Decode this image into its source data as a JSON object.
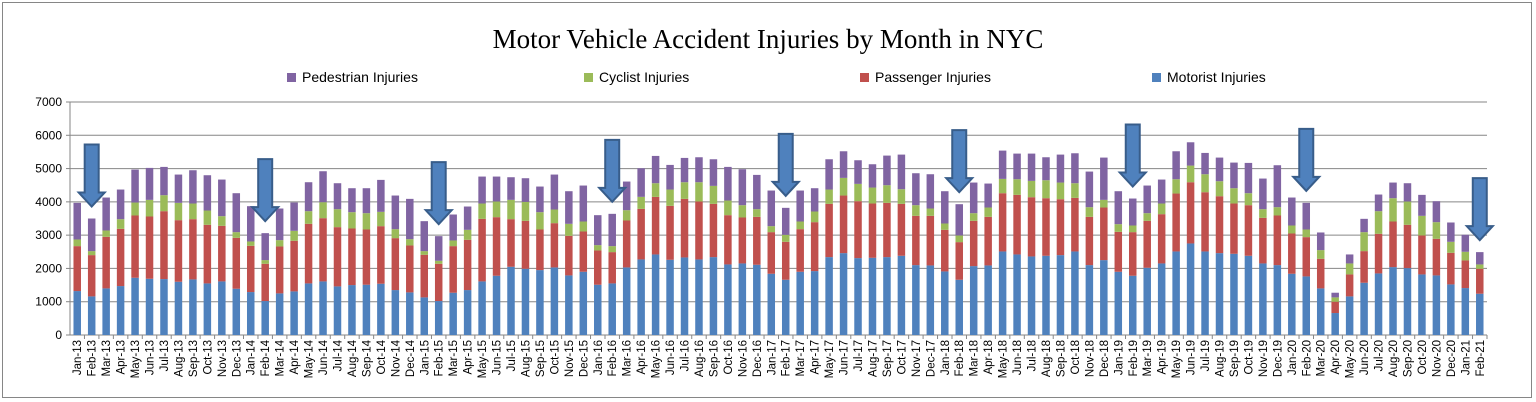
{
  "chart_data": {
    "type": "bar",
    "stacked": true,
    "title": "Motor Vehicle Accident Injuries by Month in NYC",
    "xlabel": "",
    "ylabel": "",
    "ylim": [
      0,
      7000
    ],
    "yticks": [
      0,
      1000,
      2000,
      3000,
      4000,
      5000,
      6000,
      7000
    ],
    "grid": true,
    "legend_position": "top",
    "legend_order": [
      "Pedestrian Injuries",
      "Cyclist Injuries",
      "Passenger Injuries",
      "Motorist Injuries"
    ],
    "categories": [
      "Jan-13",
      "Feb-13",
      "Mar-13",
      "Apr-13",
      "May-13",
      "Jun-13",
      "Jul-13",
      "Aug-13",
      "Sep-13",
      "Oct-13",
      "Nov-13",
      "Dec-13",
      "Jan-14",
      "Feb-14",
      "Mar-14",
      "Apr-14",
      "May-14",
      "Jun-14",
      "Jul-14",
      "Aug-14",
      "Sep-14",
      "Oct-14",
      "Nov-14",
      "Dec-14",
      "Jan-15",
      "Feb-15",
      "Mar-15",
      "Apr-15",
      "May-15",
      "Jun-15",
      "Jul-15",
      "Aug-15",
      "Sep-15",
      "Oct-15",
      "Nov-15",
      "Dec-15",
      "Jan-16",
      "Feb-16",
      "Mar-16",
      "Apr-16",
      "May-16",
      "Jun-16",
      "Jul-16",
      "Aug-16",
      "Sep-16",
      "Oct-16",
      "Nov-16",
      "Dec-16",
      "Jan-17",
      "Feb-17",
      "Mar-17",
      "Apr-17",
      "May-17",
      "Jun-17",
      "Jul-17",
      "Aug-17",
      "Sep-17",
      "Oct-17",
      "Nov-17",
      "Dec-17",
      "Jan-18",
      "Feb-18",
      "Mar-18",
      "Apr-18",
      "May-18",
      "Jun-18",
      "Jul-18",
      "Aug-18",
      "Sep-18",
      "Oct-18",
      "Nov-18",
      "Dec-18",
      "Jan-19",
      "Feb-19",
      "Mar-19",
      "Apr-19",
      "May-19",
      "Jun-19",
      "Jul-19",
      "Aug-19",
      "Sep-19",
      "Oct-19",
      "Nov-19",
      "Dec-19",
      "Jan-20",
      "Feb-20",
      "Mar-20",
      "Apr-20",
      "May-20",
      "Jun-20",
      "Jul-20",
      "Aug-20",
      "Sep-20",
      "Oct-20",
      "Nov-20",
      "Dec-20",
      "Jan-21",
      "Feb-21"
    ],
    "series": [
      {
        "name": "Motorist Injuries",
        "color": "#4F81BD",
        "values": [
          1320,
          1160,
          1400,
          1470,
          1720,
          1690,
          1680,
          1600,
          1670,
          1550,
          1610,
          1390,
          1290,
          1020,
          1250,
          1310,
          1550,
          1610,
          1460,
          1500,
          1510,
          1540,
          1350,
          1280,
          1130,
          1020,
          1270,
          1350,
          1610,
          1780,
          2050,
          1990,
          1950,
          2030,
          1790,
          1900,
          1510,
          1550,
          2030,
          2270,
          2420,
          2260,
          2330,
          2270,
          2340,
          2120,
          2150,
          2110,
          1840,
          1660,
          1900,
          1920,
          2340,
          2460,
          2310,
          2320,
          2340,
          2380,
          2100,
          2090,
          1910,
          1660,
          2070,
          2090,
          2510,
          2420,
          2360,
          2380,
          2400,
          2510,
          2100,
          2250,
          1900,
          1780,
          2020,
          2150,
          2510,
          2750,
          2510,
          2460,
          2440,
          2380,
          2150,
          2100,
          1840,
          1760,
          1400,
          660,
          1160,
          1570,
          1850,
          2040,
          2010,
          1820,
          1790,
          1520,
          1410,
          1240
        ]
      },
      {
        "name": "Passenger Injuries",
        "color": "#C0504D",
        "values": [
          1350,
          1240,
          1550,
          1720,
          1870,
          1870,
          2040,
          1850,
          1810,
          1760,
          1670,
          1530,
          1390,
          1120,
          1410,
          1520,
          1790,
          1900,
          1780,
          1700,
          1660,
          1730,
          1560,
          1410,
          1280,
          1120,
          1400,
          1510,
          1880,
          1760,
          1430,
          1440,
          1220,
          1330,
          1190,
          1210,
          1030,
          940,
          1410,
          1520,
          1730,
          1620,
          1760,
          1740,
          1600,
          1480,
          1380,
          1440,
          1250,
          1140,
          1280,
          1470,
          1600,
          1730,
          1710,
          1630,
          1630,
          1560,
          1480,
          1490,
          1250,
          1130,
          1360,
          1460,
          1750,
          1790,
          1780,
          1730,
          1680,
          1610,
          1450,
          1580,
          1200,
          1310,
          1410,
          1480,
          1740,
          1840,
          1780,
          1710,
          1510,
          1520,
          1370,
          1490,
          1210,
          1180,
          890,
          340,
          660,
          950,
          1190,
          1370,
          1300,
          1170,
          1100,
          950,
          830,
          750
        ]
      },
      {
        "name": "Cyclist Injuries",
        "color": "#9BBB59",
        "values": [
          200,
          120,
          190,
          290,
          390,
          500,
          480,
          520,
          470,
          430,
          290,
          170,
          130,
          110,
          190,
          300,
          380,
          480,
          540,
          490,
          490,
          430,
          270,
          190,
          110,
          90,
          170,
          300,
          460,
          470,
          580,
          570,
          520,
          410,
          360,
          300,
          160,
          180,
          310,
          360,
          410,
          490,
          500,
          580,
          540,
          440,
          370,
          230,
          180,
          210,
          230,
          320,
          430,
          530,
          520,
          480,
          530,
          440,
          320,
          220,
          190,
          200,
          230,
          280,
          430,
          470,
          490,
          540,
          500,
          440,
          290,
          230,
          230,
          200,
          230,
          320,
          430,
          500,
          540,
          450,
          460,
          360,
          260,
          250,
          240,
          230,
          260,
          130,
          330,
          570,
          680,
          700,
          700,
          590,
          500,
          330,
          260,
          130
        ]
      },
      {
        "name": "Pedestrian Injuries",
        "color": "#8064A2",
        "values": [
          1100,
          980,
          990,
          890,
          990,
          960,
          850,
          850,
          1000,
          1060,
          1100,
          1170,
          1060,
          810,
          950,
          850,
          870,
          930,
          780,
          720,
          750,
          960,
          1010,
          1210,
          900,
          740,
          780,
          700,
          810,
          750,
          680,
          710,
          770,
          1050,
          980,
          1080,
          900,
          970,
          860,
          860,
          820,
          740,
          730,
          750,
          800,
          1010,
          1080,
          1030,
          1070,
          810,
          930,
          700,
          910,
          800,
          710,
          700,
          890,
          1040,
          960,
          1030,
          970,
          940,
          920,
          720,
          850,
          770,
          820,
          690,
          840,
          900,
          1070,
          1270,
          990,
          810,
          830,
          720,
          840,
          700,
          640,
          710,
          770,
          910,
          920,
          1260,
          840,
          800,
          530,
          140,
          270,
          400,
          500,
          470,
          550,
          630,
          630,
          580,
          510,
          370
        ]
      }
    ],
    "annotations": {
      "type": "down-arrow",
      "color": "#4F81BD",
      "at_categories": [
        "Feb-13",
        "Feb-14",
        "Feb-15",
        "Feb-16",
        "Feb-17",
        "Feb-18",
        "Feb-19",
        "Feb-20",
        "Feb-21"
      ]
    }
  }
}
